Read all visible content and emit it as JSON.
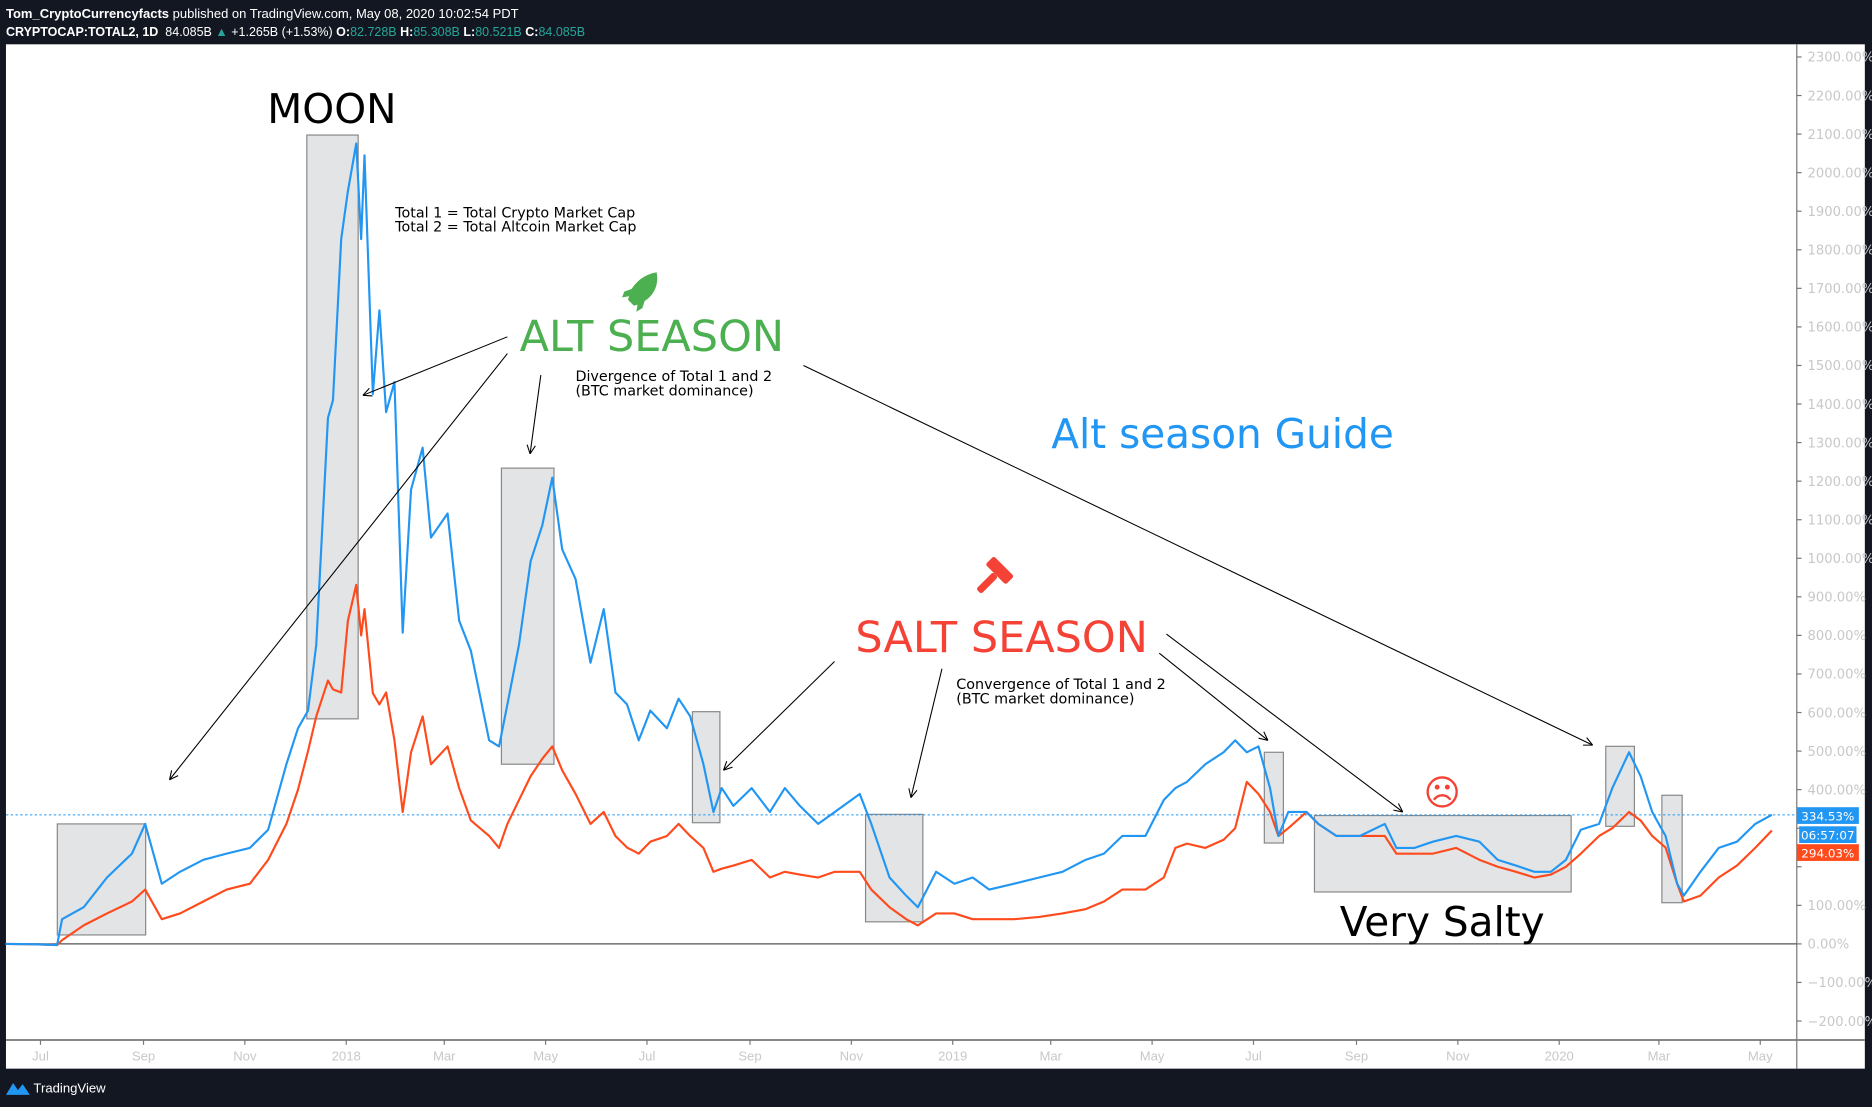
{
  "header": {
    "author": "Tom_CryptoCurrencyfacts",
    "published": "published on TradingView.com, May 08, 2020 10:02:54 PDT",
    "symbol": "CRYPTOCAP:TOTAL2, 1D",
    "last": "84.085B",
    "change": "+1.265B (+1.53%)",
    "o_label": "O:",
    "o": "82.728B",
    "h_label": "H:",
    "h": "85.308B",
    "l_label": "L:",
    "l": "80.521B",
    "c_label": "C:",
    "c": "84.085B"
  },
  "footer": {
    "brand": "TradingView"
  },
  "colors": {
    "blue": "#2196f3",
    "red": "#ff4a1c",
    "green": "#4caf50",
    "salt": "#f44336",
    "box": "#e3e4e6",
    "bg": "#131722"
  },
  "annotations": {
    "moon": "MOON",
    "total_def_1": "Total 1 = Total Crypto Market Cap",
    "total_def_2": "Total 2 = Total Altcoin Market Cap",
    "alt_season": "ALT SEASON",
    "divergence_1": "Divergence of Total 1 and 2",
    "divergence_2": "(BTC market dominance)",
    "guide": "Alt season Guide",
    "salt_season": "SALT SEASON",
    "convergence_1": "Convergence of Total 1 and 2",
    "convergence_2": "(BTC market dominance)",
    "very_salty": "Very Salty",
    "icons": [
      "rocket-icon",
      "gavel-icon",
      "sad-face-icon"
    ],
    "sad_face": "☹"
  },
  "price_labels": {
    "blue": "334.53%",
    "countdown": "06:57:07",
    "red": "294.03%"
  },
  "chart_data": {
    "type": "line",
    "title": "",
    "y_unit": "%",
    "ylim": [
      -250,
      2340
    ],
    "yticks": [
      2300,
      2200,
      2100,
      2000,
      1900,
      1800,
      1700,
      1600,
      1500,
      1400,
      1300,
      1200,
      1100,
      1000,
      900,
      800,
      700,
      600,
      500,
      400,
      300,
      200,
      100,
      0,
      -100,
      -200
    ],
    "ytick_labels": [
      "2300.00%",
      "2200.00%",
      "2100.00%",
      "2000.00%",
      "1900.00%",
      "1800.00%",
      "1700.00%",
      "1600.00%",
      "1500.00%",
      "1400.00%",
      "1300.00%",
      "1200.00%",
      "1100.00%",
      "1000.00%",
      "900.00%",
      "800.00%",
      "700.00%",
      "600.00%",
      "500.00%",
      "400.00%",
      "",
      "",
      "100.00%",
      "0.00%",
      "−100.00%",
      "−200.00%"
    ],
    "xticks": [
      {
        "date": "2017-07-01",
        "label": "Jul"
      },
      {
        "date": "2017-09-01",
        "label": "Sep"
      },
      {
        "date": "2017-11-01",
        "label": "Nov"
      },
      {
        "date": "2018-01-01",
        "label": "2018"
      },
      {
        "date": "2018-03-01",
        "label": "Mar"
      },
      {
        "date": "2018-05-01",
        "label": "May"
      },
      {
        "date": "2018-07-01",
        "label": "Jul"
      },
      {
        "date": "2018-09-01",
        "label": "Sep"
      },
      {
        "date": "2018-11-01",
        "label": "Nov"
      },
      {
        "date": "2019-01-01",
        "label": "2019"
      },
      {
        "date": "2019-03-01",
        "label": "Mar"
      },
      {
        "date": "2019-05-01",
        "label": "May"
      },
      {
        "date": "2019-07-01",
        "label": "Jul"
      },
      {
        "date": "2019-09-01",
        "label": "Sep"
      },
      {
        "date": "2019-11-01",
        "label": "Nov"
      },
      {
        "date": "2020-01-01",
        "label": "2020"
      },
      {
        "date": "2020-03-01",
        "label": "Mar"
      },
      {
        "date": "2020-05-01",
        "label": "May"
      }
    ],
    "grid": false,
    "reference_lines": [
      {
        "value": 0,
        "style": "solid"
      },
      {
        "value": 334.53,
        "style": "dotted"
      }
    ],
    "dates": [
      "2017-06-10",
      "2017-06-28",
      "2017-07-11",
      "2017-07-14",
      "2017-07-27",
      "2017-08-10",
      "2017-08-25",
      "2017-09-02",
      "2017-09-12",
      "2017-09-23",
      "2017-10-07",
      "2017-10-21",
      "2017-11-04",
      "2017-11-15",
      "2017-11-26",
      "2017-12-03",
      "2017-12-09",
      "2017-12-14",
      "2017-12-21",
      "2017-12-24",
      "2017-12-29",
      "2018-01-02",
      "2018-01-07",
      "2018-01-10",
      "2018-01-12",
      "2018-01-17",
      "2018-01-21",
      "2018-01-25",
      "2018-01-30",
      "2018-02-04",
      "2018-02-09",
      "2018-02-16",
      "2018-02-21",
      "2018-03-03",
      "2018-03-10",
      "2018-03-17",
      "2018-03-28",
      "2018-04-03",
      "2018-04-08",
      "2018-04-15",
      "2018-04-22",
      "2018-04-29",
      "2018-05-05",
      "2018-05-11",
      "2018-05-19",
      "2018-05-28",
      "2018-06-05",
      "2018-06-12",
      "2018-06-19",
      "2018-06-26",
      "2018-07-03",
      "2018-07-13",
      "2018-07-20",
      "2018-07-27",
      "2018-08-04",
      "2018-08-10",
      "2018-08-15",
      "2018-08-22",
      "2018-09-02",
      "2018-09-13",
      "2018-09-22",
      "2018-10-01",
      "2018-10-12",
      "2018-10-22",
      "2018-11-06",
      "2018-11-13",
      "2018-11-24",
      "2018-12-04",
      "2018-12-11",
      "2018-12-22",
      "2019-01-02",
      "2019-01-13",
      "2019-01-23",
      "2019-02-07",
      "2019-02-22",
      "2019-03-08",
      "2019-03-22",
      "2019-04-02",
      "2019-04-13",
      "2019-04-27",
      "2019-05-08",
      "2019-05-15",
      "2019-05-22",
      "2019-06-02",
      "2019-06-13",
      "2019-06-20",
      "2019-06-27",
      "2019-07-04",
      "2019-07-11",
      "2019-07-16",
      "2019-07-22",
      "2019-08-02",
      "2019-08-09",
      "2019-08-20",
      "2019-09-03",
      "2019-09-18",
      "2019-09-25",
      "2019-10-06",
      "2019-10-17",
      "2019-10-31",
      "2019-11-14",
      "2019-11-25",
      "2019-12-06",
      "2019-12-17",
      "2019-12-27",
      "2020-01-05",
      "2020-01-14",
      "2020-01-25",
      "2020-02-02",
      "2020-02-12",
      "2020-02-19",
      "2020-02-26",
      "2020-03-05",
      "2020-03-12",
      "2020-03-16",
      "2020-03-26",
      "2020-04-06",
      "2020-04-17",
      "2020-04-28",
      "2020-05-08"
    ],
    "series": [
      {
        "color": "#2196f3",
        "values": [
          0,
          -1,
          -3,
          64,
          95,
          172,
          234,
          311,
          156,
          187,
          218,
          234,
          249,
          296,
          466,
          559,
          605,
          776,
          1364,
          1410,
          1828,
          1952,
          2076,
          1828,
          2045,
          1426,
          1643,
          1379,
          1457,
          807,
          1178,
          1287,
          1054,
          1116,
          838,
          760,
          528,
          512,
          621,
          776,
          993,
          1085,
          1209,
          1023,
          946,
          729,
          868,
          652,
          621,
          528,
          605,
          559,
          636,
          590,
          466,
          342,
          404,
          358,
          404,
          342,
          404,
          358,
          311,
          342,
          389,
          311,
          172,
          125,
          95,
          187,
          156,
          172,
          141,
          156,
          172,
          187,
          218,
          234,
          280,
          280,
          373,
          404,
          420,
          466,
          497,
          528,
          497,
          512,
          404,
          280,
          342,
          342,
          311,
          280,
          280,
          311,
          249,
          249,
          265,
          280,
          265,
          218,
          203,
          187,
          187,
          218,
          296,
          311,
          404,
          497,
          435,
          342,
          280,
          156,
          125,
          187,
          249,
          265,
          311,
          334.53
        ]
      },
      {
        "color": "#ff4a1c",
        "values": [
          0,
          -1,
          -3,
          10,
          48,
          79,
          110,
          141,
          64,
          79,
          110,
          141,
          156,
          218,
          311,
          400,
          500,
          590,
          683,
          660,
          652,
          838,
          931,
          800,
          868,
          650,
          621,
          652,
          528,
          342,
          497,
          590,
          466,
          512,
          404,
          320,
          280,
          249,
          311,
          373,
          435,
          480,
          512,
          450,
          389,
          311,
          342,
          280,
          250,
          234,
          265,
          280,
          311,
          280,
          249,
          187,
          195,
          203,
          218,
          172,
          187,
          180,
          172,
          187,
          187,
          141,
          95,
          64,
          48,
          79,
          79,
          64,
          64,
          64,
          70,
          79,
          90,
          110,
          141,
          141,
          172,
          249,
          260,
          249,
          270,
          300,
          420,
          389,
          342,
          280,
          300,
          342,
          311,
          280,
          280,
          280,
          234,
          234,
          234,
          249,
          218,
          200,
          187,
          172,
          180,
          200,
          234,
          280,
          300,
          342,
          320,
          280,
          250,
          156,
          110,
          125,
          172,
          203,
          249,
          294.03
        ]
      }
    ]
  }
}
